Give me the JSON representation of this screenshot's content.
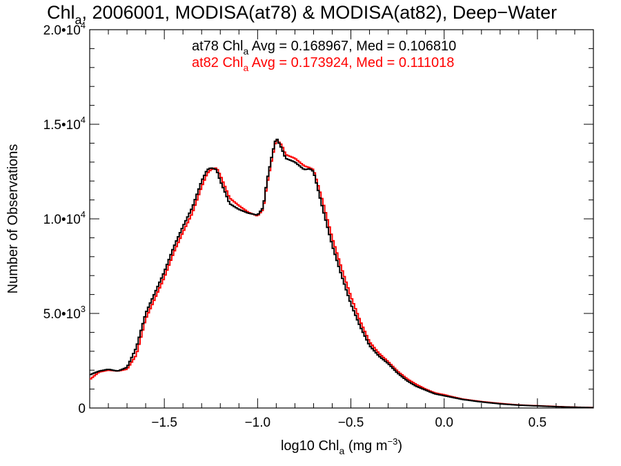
{
  "chart_data": {
    "type": "line",
    "step": true,
    "title": {
      "pre": "Chl",
      "sub": "a",
      "post": ", 2006001, MODISA(at78) & MODISA(at82), Deep−Water"
    },
    "xlabel": {
      "pre": "log10 Chl",
      "sub": "a",
      "post": " (mg m",
      "sup": "−3",
      "end": ")"
    },
    "ylabel": "Number of Observations",
    "xlim": [
      -1.9,
      0.8
    ],
    "ylim": [
      0,
      20000
    ],
    "x_ticks": [
      {
        "value": -1.5,
        "label": "−1.5"
      },
      {
        "value": -1.0,
        "label": "−1.0"
      },
      {
        "value": -0.5,
        "label": "−0.5"
      },
      {
        "value": 0.0,
        "label": "0.0"
      },
      {
        "value": 0.5,
        "label": "0.5"
      }
    ],
    "y_ticks": [
      {
        "value": 0,
        "mant": "0",
        "exp": ""
      },
      {
        "value": 5000,
        "mant": "5.0•10",
        "exp": "3"
      },
      {
        "value": 10000,
        "mant": "1.0•10",
        "exp": "4"
      },
      {
        "value": 15000,
        "mant": "1.5•10",
        "exp": "4"
      },
      {
        "value": 20000,
        "mant": "2.0•10",
        "exp": "4"
      }
    ],
    "legend_position": "top-center",
    "annotations": [
      {
        "pre": "at78 Chl",
        "sub": "a",
        "post": " Avg = 0.168967, Med = 0.106810",
        "color": "#000000"
      },
      {
        "pre": "at82 Chl",
        "sub": "a",
        "post": " Avg = 0.173924, Med = 0.111018",
        "color": "#ff0000"
      }
    ],
    "series": [
      {
        "color": "#000000",
        "x": [
          -1.9,
          -1.85,
          -1.8,
          -1.75,
          -1.7,
          -1.65,
          -1.6,
          -1.55,
          -1.5,
          -1.45,
          -1.4,
          -1.35,
          -1.3,
          -1.27,
          -1.25,
          -1.22,
          -1.2,
          -1.17,
          -1.15,
          -1.1,
          -1.05,
          -1.0,
          -0.97,
          -0.95,
          -0.92,
          -0.9,
          -0.87,
          -0.85,
          -0.8,
          -0.75,
          -0.72,
          -0.7,
          -0.65,
          -0.6,
          -0.55,
          -0.5,
          -0.45,
          -0.4,
          -0.35,
          -0.3,
          -0.25,
          -0.2,
          -0.15,
          -0.1,
          -0.05,
          0.0,
          0.05,
          0.1,
          0.2,
          0.3,
          0.4,
          0.5,
          0.6,
          0.7,
          0.8
        ],
        "y": [
          1750,
          1950,
          2050,
          1950,
          2150,
          3200,
          5000,
          6100,
          7200,
          8500,
          9600,
          10600,
          12000,
          12600,
          12700,
          12600,
          12000,
          11300,
          10800,
          10500,
          10300,
          10200,
          10600,
          12000,
          13500,
          14300,
          13700,
          13200,
          13000,
          12600,
          12650,
          12500,
          10500,
          8600,
          7000,
          5500,
          4300,
          3300,
          2750,
          2350,
          1850,
          1450,
          1150,
          950,
          750,
          650,
          550,
          450,
          320,
          220,
          150,
          110,
          70,
          40,
          20
        ]
      },
      {
        "color": "#ff0000",
        "x": [
          -1.9,
          -1.85,
          -1.8,
          -1.75,
          -1.7,
          -1.65,
          -1.6,
          -1.55,
          -1.5,
          -1.45,
          -1.4,
          -1.35,
          -1.3,
          -1.27,
          -1.25,
          -1.22,
          -1.2,
          -1.17,
          -1.15,
          -1.1,
          -1.05,
          -1.0,
          -0.97,
          -0.95,
          -0.92,
          -0.9,
          -0.87,
          -0.85,
          -0.8,
          -0.75,
          -0.72,
          -0.7,
          -0.65,
          -0.6,
          -0.55,
          -0.5,
          -0.45,
          -0.4,
          -0.35,
          -0.3,
          -0.25,
          -0.2,
          -0.15,
          -0.1,
          -0.05,
          0.0,
          0.05,
          0.1,
          0.2,
          0.3,
          0.4,
          0.5,
          0.6,
          0.7,
          0.8
        ],
        "y": [
          1500,
          1900,
          2000,
          1950,
          2050,
          2800,
          4700,
          5800,
          6900,
          8200,
          9300,
          10300,
          11700,
          12400,
          12600,
          12700,
          12300,
          11600,
          11100,
          10700,
          10350,
          10150,
          10500,
          11800,
          13300,
          14200,
          13900,
          13400,
          13200,
          12800,
          12700,
          12600,
          10900,
          9000,
          7400,
          5900,
          4600,
          3500,
          2900,
          2450,
          1950,
          1550,
          1250,
          1000,
          800,
          700,
          580,
          470,
          340,
          240,
          160,
          120,
          80,
          45,
          25
        ]
      }
    ]
  }
}
